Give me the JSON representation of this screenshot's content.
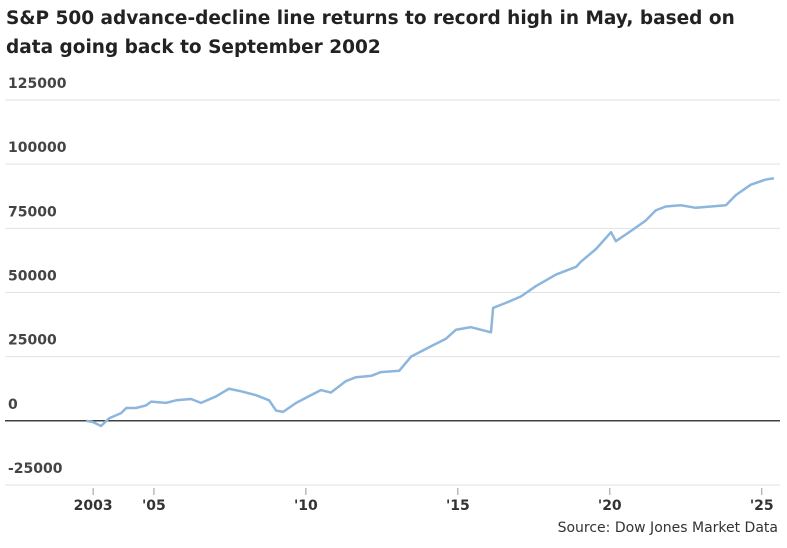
{
  "chart_data": {
    "type": "line",
    "title": "S&P 500 advance-decline line returns to record high in May, based on data going back to September 2002",
    "source": "Source: Dow Jones Market Data",
    "x": [
      2002.77,
      2003.0,
      2003.26,
      2003.53,
      2003.92,
      2004.09,
      2004.41,
      2004.74,
      2004.91,
      2005.4,
      2005.73,
      2006.22,
      2006.55,
      2007.04,
      2007.47,
      2007.87,
      2008.36,
      2008.79,
      2009.02,
      2009.25,
      2009.68,
      2010.17,
      2010.5,
      2010.82,
      2011.32,
      2011.65,
      2012.14,
      2012.47,
      2013.07,
      2013.46,
      2014.11,
      2014.61,
      2014.94,
      2015.43,
      2016.09,
      2016.16,
      2016.59,
      2017.08,
      2017.57,
      2018.23,
      2018.89,
      2019.05,
      2019.55,
      2020.04,
      2020.2,
      2020.7,
      2021.18,
      2021.51,
      2021.84,
      2022.34,
      2022.83,
      2023.33,
      2023.82,
      2024.15,
      2024.64,
      2025.13,
      2025.4
    ],
    "series": [
      {
        "name": "S&P 500 advance-decline line",
        "color": "#8db6dc",
        "values": [
          0,
          -500,
          -2000,
          1000,
          3000,
          5000,
          5000,
          6000,
          7500,
          7000,
          8000,
          8500,
          7000,
          9500,
          12500,
          11500,
          10000,
          8000,
          4000,
          3500,
          7000,
          10000,
          12000,
          11000,
          15500,
          17000,
          17500,
          19000,
          19500,
          25000,
          29000,
          32000,
          35500,
          36500,
          34500,
          44000,
          46000,
          48500,
          52500,
          57000,
          60000,
          62000,
          67000,
          73500,
          70000,
          74000,
          78000,
          82000,
          83500,
          84000,
          83000,
          83500,
          84000,
          88000,
          92000,
          94000,
          94500
        ]
      }
    ],
    "xlim": [
      2000.1,
      2025.6
    ],
    "xticks": [
      2003,
      {
        "value": 2005,
        "label": "'05"
      },
      {
        "value": 2010,
        "label": "'10"
      },
      {
        "value": 2015,
        "label": "'15"
      },
      {
        "value": 2020,
        "label": "'20"
      },
      {
        "value": 2025,
        "label": "'25"
      }
    ],
    "ylim": [
      -25000,
      125000
    ],
    "yticks": [
      -25000,
      0,
      25000,
      50000,
      75000,
      100000,
      125000
    ],
    "grid": true
  }
}
